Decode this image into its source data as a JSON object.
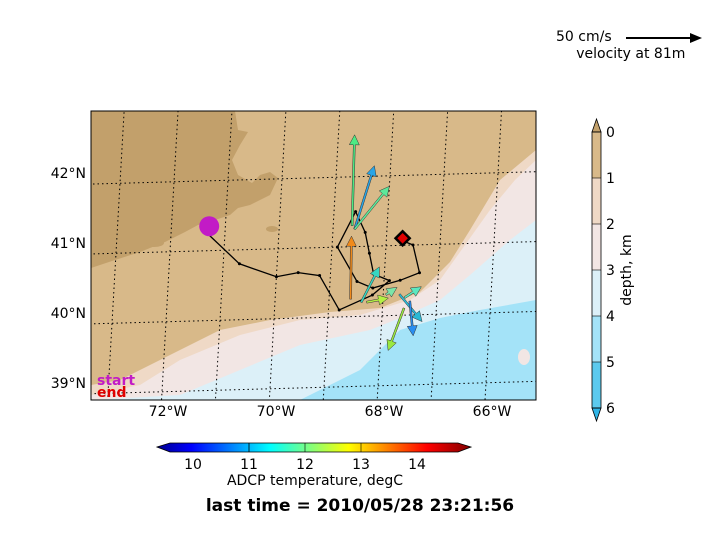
{
  "scale": {
    "speed": "50 cm/s",
    "depth": "velocity at 81m"
  },
  "map": {
    "lat_labels": [
      "42°N",
      "41°N",
      "40°N",
      "39°N"
    ],
    "lon_labels": [
      "72°W",
      "70°W",
      "68°W",
      "66°W"
    ],
    "legend_start": "start",
    "legend_end": "end",
    "colors": {
      "land": "#c2a06b",
      "shelf": "#d8b989",
      "slope": "#efd9c6",
      "mid": "#f2e6e4",
      "deep1": "#dcf0f8",
      "deep2": "#a4e3f8",
      "start_marker": "#c21bc6",
      "end_marker": "#e00000"
    },
    "track": [
      [
        -71.4,
        41.3
      ],
      [
        -70.7,
        40.8
      ],
      [
        -70.0,
        40.6
      ],
      [
        -69.6,
        40.65
      ],
      [
        -69.2,
        40.6
      ],
      [
        -68.8,
        40.1
      ],
      [
        -68.2,
        40.3
      ],
      [
        -67.9,
        40.5
      ],
      [
        -68.2,
        40.6
      ],
      [
        -68.3,
        40.9
      ],
      [
        -68.4,
        41.2
      ],
      [
        -68.6,
        41.5
      ],
      [
        -68.9,
        41.0
      ],
      [
        -68.5,
        40.5
      ],
      [
        -68.2,
        40.4
      ],
      [
        -67.7,
        40.5
      ],
      [
        -67.35,
        40.6
      ],
      [
        -67.5,
        41.0
      ],
      [
        -67.8,
        41.1
      ]
    ],
    "vectors": [
      {
        "lon": -68.65,
        "lat": 41.3,
        "dx": -0.05,
        "dy": 1.3,
        "color": "#4eea84"
      },
      {
        "lon": -68.6,
        "lat": 41.25,
        "dx": 0.3,
        "dy": 0.9,
        "color": "#29a5e6"
      },
      {
        "lon": -68.6,
        "lat": 41.25,
        "dx": 0.6,
        "dy": 0.6,
        "color": "#5de89a"
      },
      {
        "lon": -68.6,
        "lat": 40.25,
        "dx": -0.05,
        "dy": 0.9,
        "color": "#f08a1b"
      },
      {
        "lon": -68.4,
        "lat": 40.2,
        "dx": 0.3,
        "dy": 0.5,
        "color": "#36d6c2"
      },
      {
        "lon": -68.3,
        "lat": 40.2,
        "dx": 0.4,
        "dy": 0.05,
        "color": "#b4f043"
      },
      {
        "lon": -67.95,
        "lat": 40.3,
        "dx": 0.2,
        "dy": 0.1,
        "color": "#7ce5a8"
      },
      {
        "lon": -67.6,
        "lat": 40.1,
        "dx": -0.25,
        "dy": -0.6,
        "color": "#9ae840"
      },
      {
        "lon": -67.7,
        "lat": 40.3,
        "dx": 0.45,
        "dy": -0.4,
        "color": "#2bb8d4"
      },
      {
        "lon": -67.6,
        "lat": 40.25,
        "dx": 0.3,
        "dy": 0.15,
        "color": "#5ce8c0"
      },
      {
        "lon": -67.5,
        "lat": 40.2,
        "dx": 0.1,
        "dy": -0.5,
        "color": "#2a8ef0"
      }
    ],
    "start": {
      "lon": -71.3,
      "lat": 41.35
    },
    "end": {
      "lon": -67.7,
      "lat": 41.1
    }
  },
  "depth_bar": {
    "label": "depth, km",
    "ticks": [
      "0",
      "1",
      "2",
      "3",
      "4",
      "5",
      "6"
    ],
    "colors": [
      "#c2a06b",
      "#d8b989",
      "#efd9c6",
      "#f2e6e4",
      "#dcf0f8",
      "#a4e3f8",
      "#5ccaee"
    ]
  },
  "temp_bar": {
    "label": "ADCP temperature, degC",
    "ticks": [
      "10",
      "11",
      "12",
      "13",
      "14"
    ]
  },
  "time": {
    "text": "last time = 2010/05/28 23:21:56"
  }
}
